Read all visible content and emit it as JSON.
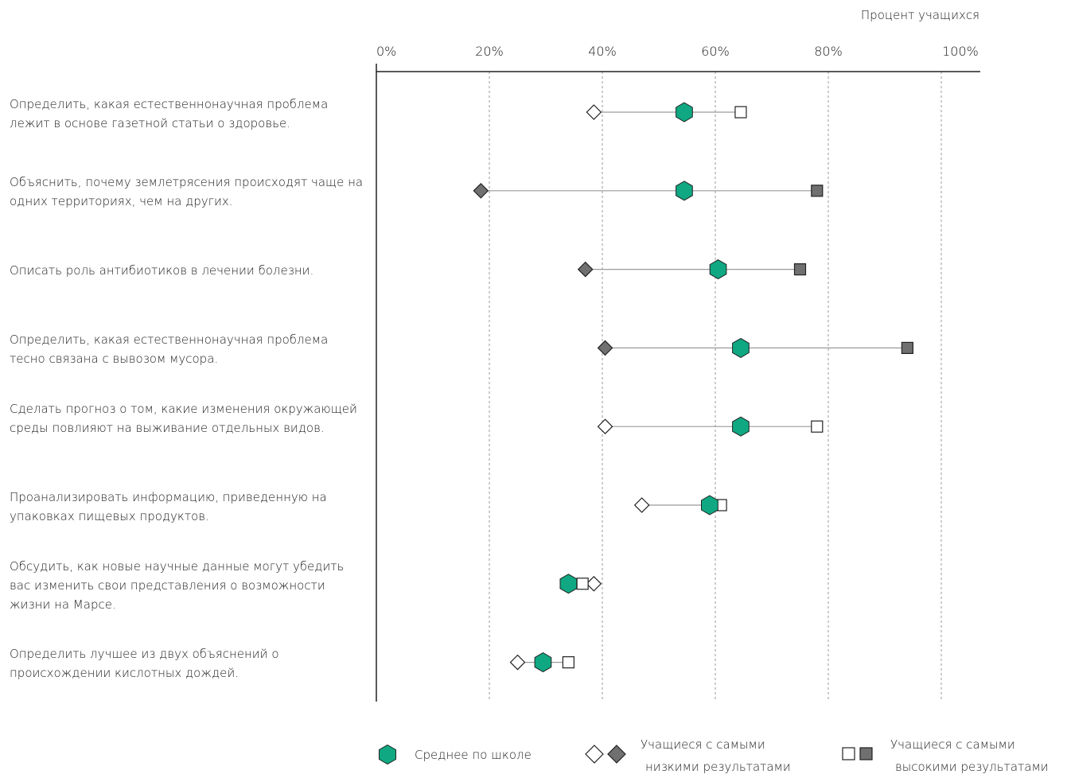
{
  "chart_data": {
    "type": "scatter",
    "axis_title": "Процент учащихся",
    "xlim": [
      0,
      100
    ],
    "ticks": [
      "0%",
      "20%",
      "40%",
      "60%",
      "80%",
      "100%"
    ],
    "grid": true,
    "categories": [
      "Определить, какая естественнонаучная проблема лежит в основе газетной статьи о здоровье.",
      "Объяснить, почему землетрясения происходят чаще на одних территориях, чем на других.",
      "Описать роль антибиотиков в лечении болезни.",
      "Определить, какая естественнонаучная проблема тесно связана с вывозом мусора.",
      "Сделать прогноз о том, какие изменения окружающей среды повлияют на выживание отдельных видов.",
      "Проанализировать информацию, приведенную на упаковках пищевых продуктов.",
      "Обсудить, как новые научные данные могут убедить вас изменить свои представления о возможности жизни на Марсе.",
      "Определить лучшее из двух объяснений о происхождении кислотных дождей."
    ],
    "series": [
      {
        "name": "Среднее по школе",
        "marker": "hexagon",
        "color": "#0fa882",
        "values": [
          54.5,
          54.5,
          60.5,
          64.5,
          64.5,
          59.0,
          34.0,
          29.5
        ]
      },
      {
        "name": "Учащиеся с самыми низкими результатами",
        "marker": "diamond",
        "values": [
          38.5,
          18.5,
          37.0,
          40.5,
          40.5,
          47.0,
          38.5,
          25.0
        ],
        "significant": [
          false,
          true,
          true,
          true,
          false,
          false,
          false,
          false
        ]
      },
      {
        "name": "Учащиеся с самыми высокими результатами",
        "marker": "square",
        "values": [
          64.5,
          78.0,
          75.0,
          94.0,
          78.0,
          61.0,
          36.5,
          34.0
        ],
        "significant": [
          false,
          true,
          true,
          true,
          false,
          false,
          false,
          false
        ]
      }
    ],
    "colors": {
      "mean": "#0fa882",
      "significant": "#707070",
      "outline": "#222222",
      "line": "#9a9a9a"
    }
  },
  "legend": {
    "mean_label": "Среднее по школе",
    "low_label": [
      "Учащиеся с самыми",
      "низкими результатами"
    ],
    "high_label": [
      "Учащиеся с самыми",
      "высокими результатами"
    ]
  }
}
